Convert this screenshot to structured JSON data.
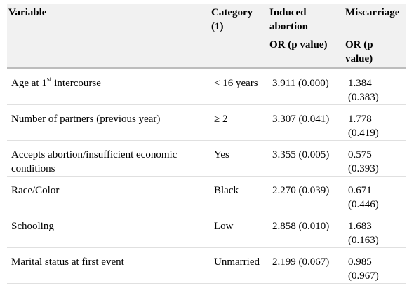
{
  "header": {
    "variable": "Variable",
    "category_l1": "Category",
    "category_l2": "(1)",
    "induced_l1": "Induced",
    "induced_l2": "abortion",
    "induced_sub": "OR (p value)",
    "miscarriage": "Miscarriage",
    "miscarriage_sub_l1": "OR (p",
    "miscarriage_sub_l2": "value)"
  },
  "rows": [
    {
      "variable_pre": "Age at 1",
      "variable_sup": "st",
      "variable_post": " intercourse",
      "category": "< 16 years",
      "induced": "3.911 (0.000)",
      "miscarriage_l1": "1.384",
      "miscarriage_l2": "(0.383)"
    },
    {
      "variable_l1": "Number of partners (previous year)",
      "category": "≥ 2",
      "induced": "3.307 (0.041)",
      "miscarriage_l1": "1.778",
      "miscarriage_l2": "(0.419)"
    },
    {
      "variable_l1": "Accepts abortion/insufficient economic",
      "variable_l2": "conditions",
      "category": "Yes",
      "induced": "3.355 (0.005)",
      "miscarriage_l1": "0.575",
      "miscarriage_l2": "(0.393)"
    },
    {
      "variable_l1": "Race/Color",
      "category": "Black",
      "induced": "2.270 (0.039)",
      "miscarriage_l1": "0.671",
      "miscarriage_l2": "(0.446)"
    },
    {
      "variable_l1": "Schooling",
      "category": "Low",
      "induced": "2.858 (0.010)",
      "miscarriage_l1": "1.683",
      "miscarriage_l2": "(0.163)"
    },
    {
      "variable_l1": "Marital status at first event",
      "category": "Unmarried",
      "induced": "2.199 (0.067)",
      "miscarriage_l1": "0.985",
      "miscarriage_l2": "(0.967)"
    }
  ]
}
